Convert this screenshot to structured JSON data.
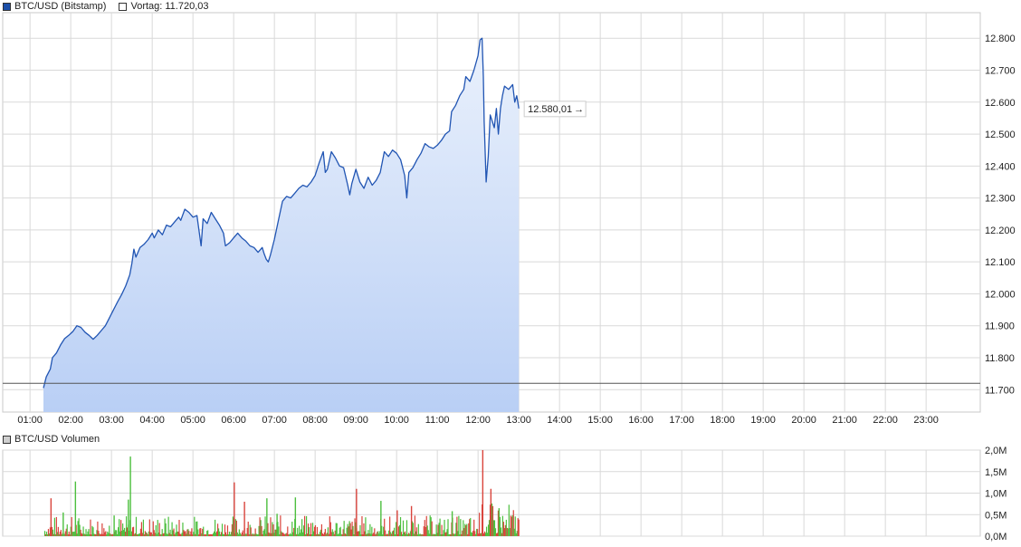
{
  "legend": {
    "series_label": "BTC/USD (Bitstamp)",
    "series_color": "#1c4fa8",
    "prev_label": "Vortag: 11.720,03",
    "volume_label": "BTC/USD Volumen"
  },
  "last_value_label": "12.580,01",
  "colors": {
    "line": "#2155b3",
    "area_top": "#eaf1fc",
    "area_bottom": "#b9cff5",
    "prev_line": "#555555",
    "grid": "#d9d9d9",
    "vol_up": "#4cbf3e",
    "vol_down": "#d9443c"
  },
  "chart_data": [
    {
      "type": "area",
      "title": "BTC/USD (Bitstamp)",
      "x_ticks": [
        "01:00",
        "02:00",
        "03:00",
        "04:00",
        "05:00",
        "06:00",
        "07:00",
        "08:00",
        "09:00",
        "10:00",
        "11:00",
        "12:00",
        "13:00",
        "14:00",
        "15:00",
        "16:00",
        "17:00",
        "18:00",
        "19:00",
        "20:00",
        "21:00",
        "22:00",
        "23:00"
      ],
      "y_ticks": [
        {
          "value": 12800,
          "label": "12.800"
        },
        {
          "value": 12700,
          "label": "12.700"
        },
        {
          "value": 12600,
          "label": "12.600"
        },
        {
          "value": 12500,
          "label": "12.500"
        },
        {
          "value": 12400,
          "label": "12.400"
        },
        {
          "value": 12300,
          "label": "12.300"
        },
        {
          "value": 12200,
          "label": "12.200"
        },
        {
          "value": 12100,
          "label": "12.100"
        },
        {
          "value": 12000,
          "label": "12.000"
        },
        {
          "value": 11900,
          "label": "11.900"
        },
        {
          "value": 11800,
          "label": "11.800"
        },
        {
          "value": 11700,
          "label": "11.700"
        }
      ],
      "ylim": [
        11630,
        12880
      ],
      "xlim_hours": [
        0.33,
        24.33
      ],
      "reference_line": {
        "name": "Vortag",
        "value": 11720.03
      },
      "last_value": 12580.01,
      "grid": true,
      "y_axis_side": "right",
      "series": [
        {
          "name": "BTC/USD (Bitstamp)",
          "points": [
            [
              1.33,
              11705
            ],
            [
              1.4,
              11740
            ],
            [
              1.5,
              11765
            ],
            [
              1.55,
              11800
            ],
            [
              1.65,
              11815
            ],
            [
              1.75,
              11840
            ],
            [
              1.85,
              11860
            ],
            [
              1.95,
              11870
            ],
            [
              2.05,
              11882
            ],
            [
              2.15,
              11900
            ],
            [
              2.25,
              11895
            ],
            [
              2.35,
              11880
            ],
            [
              2.45,
              11870
            ],
            [
              2.55,
              11858
            ],
            [
              2.65,
              11870
            ],
            [
              2.75,
              11885
            ],
            [
              2.85,
              11900
            ],
            [
              2.95,
              11925
            ],
            [
              3.05,
              11950
            ],
            [
              3.15,
              11975
            ],
            [
              3.25,
              11998
            ],
            [
              3.35,
              12025
            ],
            [
              3.45,
              12060
            ],
            [
              3.5,
              12095
            ],
            [
              3.55,
              12140
            ],
            [
              3.6,
              12115
            ],
            [
              3.7,
              12145
            ],
            [
              3.8,
              12155
            ],
            [
              3.9,
              12170
            ],
            [
              4.0,
              12190
            ],
            [
              4.05,
              12175
            ],
            [
              4.15,
              12200
            ],
            [
              4.25,
              12185
            ],
            [
              4.35,
              12215
            ],
            [
              4.45,
              12210
            ],
            [
              4.55,
              12225
            ],
            [
              4.65,
              12240
            ],
            [
              4.7,
              12230
            ],
            [
              4.8,
              12265
            ],
            [
              4.9,
              12255
            ],
            [
              5.0,
              12240
            ],
            [
              5.1,
              12245
            ],
            [
              5.2,
              12150
            ],
            [
              5.25,
              12235
            ],
            [
              5.35,
              12220
            ],
            [
              5.45,
              12255
            ],
            [
              5.55,
              12235
            ],
            [
              5.65,
              12215
            ],
            [
              5.75,
              12190
            ],
            [
              5.8,
              12150
            ],
            [
              5.9,
              12160
            ],
            [
              6.0,
              12175
            ],
            [
              6.1,
              12190
            ],
            [
              6.2,
              12175
            ],
            [
              6.3,
              12165
            ],
            [
              6.4,
              12150
            ],
            [
              6.5,
              12145
            ],
            [
              6.6,
              12130
            ],
            [
              6.7,
              12145
            ],
            [
              6.75,
              12125
            ],
            [
              6.8,
              12108
            ],
            [
              6.85,
              12100
            ],
            [
              6.9,
              12120
            ],
            [
              7.0,
              12170
            ],
            [
              7.1,
              12230
            ],
            [
              7.2,
              12290
            ],
            [
              7.3,
              12305
            ],
            [
              7.4,
              12300
            ],
            [
              7.5,
              12315
            ],
            [
              7.6,
              12330
            ],
            [
              7.7,
              12340
            ],
            [
              7.8,
              12335
            ],
            [
              7.9,
              12350
            ],
            [
              8.0,
              12370
            ],
            [
              8.1,
              12410
            ],
            [
              8.2,
              12445
            ],
            [
              8.25,
              12380
            ],
            [
              8.3,
              12390
            ],
            [
              8.4,
              12445
            ],
            [
              8.5,
              12425
            ],
            [
              8.6,
              12400
            ],
            [
              8.7,
              12395
            ],
            [
              8.8,
              12340
            ],
            [
              8.85,
              12310
            ],
            [
              8.9,
              12345
            ],
            [
              9.0,
              12390
            ],
            [
              9.1,
              12350
            ],
            [
              9.2,
              12330
            ],
            [
              9.3,
              12365
            ],
            [
              9.4,
              12340
            ],
            [
              9.5,
              12355
            ],
            [
              9.6,
              12380
            ],
            [
              9.7,
              12445
            ],
            [
              9.8,
              12430
            ],
            [
              9.9,
              12450
            ],
            [
              10.0,
              12440
            ],
            [
              10.1,
              12420
            ],
            [
              10.2,
              12370
            ],
            [
              10.25,
              12300
            ],
            [
              10.3,
              12380
            ],
            [
              10.4,
              12395
            ],
            [
              10.5,
              12420
            ],
            [
              10.6,
              12440
            ],
            [
              10.7,
              12470
            ],
            [
              10.8,
              12460
            ],
            [
              10.9,
              12455
            ],
            [
              11.0,
              12465
            ],
            [
              11.1,
              12480
            ],
            [
              11.2,
              12500
            ],
            [
              11.3,
              12510
            ],
            [
              11.35,
              12570
            ],
            [
              11.45,
              12590
            ],
            [
              11.55,
              12620
            ],
            [
              11.65,
              12640
            ],
            [
              11.7,
              12680
            ],
            [
              11.8,
              12665
            ],
            [
              11.9,
              12700
            ],
            [
              12.0,
              12745
            ],
            [
              12.05,
              12795
            ],
            [
              12.1,
              12800
            ],
            [
              12.13,
              12680
            ],
            [
              12.15,
              12540
            ],
            [
              12.2,
              12350
            ],
            [
              12.25,
              12430
            ],
            [
              12.3,
              12560
            ],
            [
              12.4,
              12520
            ],
            [
              12.45,
              12580
            ],
            [
              12.5,
              12500
            ],
            [
              12.55,
              12580
            ],
            [
              12.6,
              12620
            ],
            [
              12.65,
              12650
            ],
            [
              12.75,
              12640
            ],
            [
              12.85,
              12655
            ],
            [
              12.9,
              12600
            ],
            [
              12.95,
              12620
            ],
            [
              13.0,
              12580.01
            ]
          ]
        }
      ]
    },
    {
      "type": "bar",
      "title": "BTC/USD Volumen",
      "y_ticks": [
        {
          "value": 2.0,
          "label": "2,0M"
        },
        {
          "value": 1.5,
          "label": "1,5M"
        },
        {
          "value": 1.0,
          "label": "1,0M"
        },
        {
          "value": 0.5,
          "label": "0,5M"
        },
        {
          "value": 0.0,
          "label": "0,0M"
        }
      ],
      "ylim": [
        0,
        2.0
      ],
      "unit": "M",
      "spikes": [
        {
          "x": 1.5,
          "value": 0.88,
          "dir": "down"
        },
        {
          "x": 1.8,
          "value": 0.55,
          "dir": "up"
        },
        {
          "x": 2.1,
          "value": 1.27,
          "dir": "up"
        },
        {
          "x": 3.05,
          "value": 0.48,
          "dir": "up"
        },
        {
          "x": 3.4,
          "value": 0.85,
          "dir": "up"
        },
        {
          "x": 3.45,
          "value": 1.85,
          "dir": "up"
        },
        {
          "x": 6.0,
          "value": 1.25,
          "dir": "down"
        },
        {
          "x": 6.25,
          "value": 0.8,
          "dir": "down"
        },
        {
          "x": 6.8,
          "value": 0.88,
          "dir": "up"
        },
        {
          "x": 7.05,
          "value": 0.52,
          "dir": "up"
        },
        {
          "x": 7.5,
          "value": 0.9,
          "dir": "up"
        },
        {
          "x": 9.0,
          "value": 1.1,
          "dir": "down"
        },
        {
          "x": 9.6,
          "value": 0.82,
          "dir": "up"
        },
        {
          "x": 10.0,
          "value": 0.6,
          "dir": "down"
        },
        {
          "x": 10.35,
          "value": 0.7,
          "dir": "down"
        },
        {
          "x": 11.35,
          "value": 0.58,
          "dir": "up"
        },
        {
          "x": 12.1,
          "value": 2.0,
          "dir": "down"
        },
        {
          "x": 12.3,
          "value": 1.1,
          "dir": "down"
        },
        {
          "x": 12.5,
          "value": 0.65,
          "dir": "up"
        }
      ]
    }
  ]
}
